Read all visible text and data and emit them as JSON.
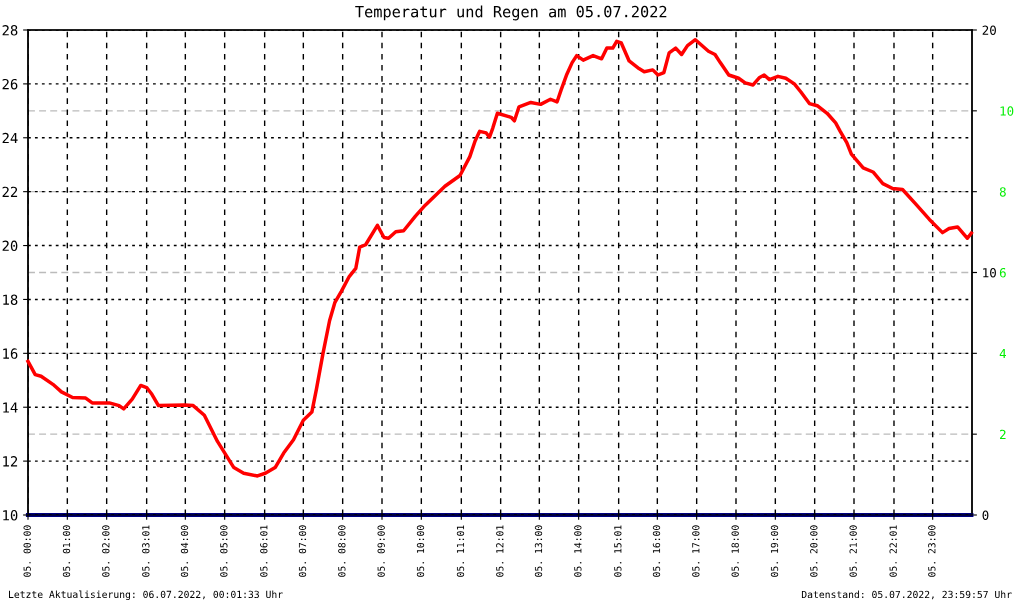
{
  "chart_data": {
    "type": "line",
    "title": "Temperatur und Regen am 05.07.2022",
    "xlim": [
      "2022-07-05T00:00",
      "2022-07-06T00:00"
    ],
    "xticks": [
      {
        "value": "2022-07-05T00:00",
        "label": "05. 00:00"
      },
      {
        "value": "2022-07-05T01:00",
        "label": "05. 01:00"
      },
      {
        "value": "2022-07-05T02:00",
        "label": "05. 02:00"
      },
      {
        "value": "2022-07-05T03:01",
        "label": "05. 03:01"
      },
      {
        "value": "2022-07-05T04:00",
        "label": "05. 04:00"
      },
      {
        "value": "2022-07-05T05:00",
        "label": "05. 05:00"
      },
      {
        "value": "2022-07-05T06:01",
        "label": "05. 06:01"
      },
      {
        "value": "2022-07-05T07:00",
        "label": "05. 07:00"
      },
      {
        "value": "2022-07-05T08:00",
        "label": "05. 08:00"
      },
      {
        "value": "2022-07-05T09:00",
        "label": "05. 09:00"
      },
      {
        "value": "2022-07-05T10:00",
        "label": "05. 10:00"
      },
      {
        "value": "2022-07-05T11:01",
        "label": "05. 11:01"
      },
      {
        "value": "2022-07-05T12:01",
        "label": "05. 12:01"
      },
      {
        "value": "2022-07-05T13:00",
        "label": "05. 13:00"
      },
      {
        "value": "2022-07-05T14:00",
        "label": "05. 14:00"
      },
      {
        "value": "2022-07-05T15:01",
        "label": "05. 15:01"
      },
      {
        "value": "2022-07-05T16:00",
        "label": "05. 16:00"
      },
      {
        "value": "2022-07-05T17:00",
        "label": "05. 17:00"
      },
      {
        "value": "2022-07-05T18:00",
        "label": "05. 18:00"
      },
      {
        "value": "2022-07-05T19:00",
        "label": "05. 19:00"
      },
      {
        "value": "2022-07-05T20:00",
        "label": "05. 20:00"
      },
      {
        "value": "2022-07-05T21:00",
        "label": "05. 21:00"
      },
      {
        "value": "2022-07-05T22:01",
        "label": "05. 22:01"
      },
      {
        "value": "2022-07-05T23:00",
        "label": "05. 23:00"
      }
    ],
    "ylim": [
      10,
      28
    ],
    "yticks": [
      10,
      12,
      14,
      16,
      18,
      20,
      22,
      24,
      26,
      28
    ],
    "y2lim": [
      0,
      20
    ],
    "y2ticks": [
      0,
      10,
      20
    ],
    "y3lim": [
      0,
      12
    ],
    "y3ticks": [
      2,
      4,
      6,
      8,
      10
    ],
    "grid": true,
    "legend": false,
    "marker": "none",
    "line_style": "solid",
    "series": [
      {
        "color": "#ff0000",
        "x": [
          "2022-07-05T00:00",
          "2022-07-05T00:11",
          "2022-07-05T00:20",
          "2022-07-05T00:38",
          "2022-07-05T00:51",
          "2022-07-05T01:08",
          "2022-07-05T01:28",
          "2022-07-05T01:38",
          "2022-07-05T02:04",
          "2022-07-05T02:19",
          "2022-07-05T02:26",
          "2022-07-05T02:39",
          "2022-07-05T02:52",
          "2022-07-05T03:01",
          "2022-07-05T03:09",
          "2022-07-05T03:19",
          "2022-07-05T03:59",
          "2022-07-05T04:12",
          "2022-07-05T04:29",
          "2022-07-05T04:49",
          "2022-07-05T05:14",
          "2022-07-05T05:29",
          "2022-07-05T05:50",
          "2022-07-05T06:02",
          "2022-07-05T06:17",
          "2022-07-05T06:30",
          "2022-07-05T06:45",
          "2022-07-05T07:00",
          "2022-07-05T07:13",
          "2022-07-05T07:20",
          "2022-07-05T07:30",
          "2022-07-05T07:40",
          "2022-07-05T07:48",
          "2022-07-05T07:58",
          "2022-07-05T08:10",
          "2022-07-05T08:20",
          "2022-07-05T08:26",
          "2022-07-05T08:35",
          "2022-07-05T08:53",
          "2022-07-05T09:03",
          "2022-07-05T09:10",
          "2022-07-05T09:21",
          "2022-07-05T09:33",
          "2022-07-05T09:51",
          "2022-07-05T10:06",
          "2022-07-05T10:36",
          "2022-07-05T10:59",
          "2022-07-05T11:14",
          "2022-07-05T11:22",
          "2022-07-05T11:29",
          "2022-07-05T11:39",
          "2022-07-05T11:44",
          "2022-07-05T11:49",
          "2022-07-05T11:56",
          "2022-07-05T12:17",
          "2022-07-05T12:22",
          "2022-07-05T12:29",
          "2022-07-05T12:47",
          "2022-07-05T13:02",
          "2022-07-05T13:17",
          "2022-07-05T13:27",
          "2022-07-05T13:33",
          "2022-07-05T13:42",
          "2022-07-05T13:50",
          "2022-07-05T13:57",
          "2022-07-05T14:07",
          "2022-07-05T14:22",
          "2022-07-05T14:35",
          "2022-07-05T14:43",
          "2022-07-05T14:52",
          "2022-07-05T14:58",
          "2022-07-05T15:05",
          "2022-07-05T15:17",
          "2022-07-05T15:32",
          "2022-07-05T15:40",
          "2022-07-05T15:53",
          "2022-07-05T16:01",
          "2022-07-05T16:10",
          "2022-07-05T16:18",
          "2022-07-05T16:28",
          "2022-07-05T16:37",
          "2022-07-05T16:46",
          "2022-07-05T16:58",
          "2022-07-05T17:05",
          "2022-07-05T17:18",
          "2022-07-05T17:28",
          "2022-07-05T17:36",
          "2022-07-05T17:49",
          "2022-07-05T18:04",
          "2022-07-05T18:14",
          "2022-07-05T18:26",
          "2022-07-05T18:36",
          "2022-07-05T18:43",
          "2022-07-05T18:51",
          "2022-07-05T19:04",
          "2022-07-05T19:16",
          "2022-07-05T19:29",
          "2022-07-05T19:39",
          "2022-07-05T19:52",
          "2022-07-05T20:04",
          "2022-07-05T20:19",
          "2022-07-05T20:32",
          "2022-07-05T20:39",
          "2022-07-05T20:49",
          "2022-07-05T20:56",
          "2022-07-05T21:14",
          "2022-07-05T21:29",
          "2022-07-05T21:44",
          "2022-07-05T21:59",
          "2022-07-05T22:14",
          "2022-07-05T22:35",
          "2022-07-05T22:55",
          "2022-07-05T23:15",
          "2022-07-05T23:25",
          "2022-07-05T23:38",
          "2022-07-05T23:53",
          "2022-07-05T23:59"
        ],
        "values": [
          15.7,
          15.21,
          15.15,
          14.85,
          14.57,
          14.36,
          14.34,
          14.16,
          14.16,
          14.06,
          13.94,
          14.3,
          14.81,
          14.73,
          14.48,
          14.06,
          14.08,
          14.06,
          13.7,
          12.73,
          11.76,
          11.55,
          11.45,
          11.55,
          11.76,
          12.3,
          12.79,
          13.52,
          13.82,
          14.67,
          16.0,
          17.21,
          17.88,
          18.3,
          18.85,
          19.15,
          19.94,
          20.03,
          20.75,
          20.3,
          20.27,
          20.51,
          20.55,
          21.09,
          21.5,
          22.2,
          22.6,
          23.3,
          23.88,
          24.24,
          24.18,
          24.02,
          24.36,
          24.91,
          24.76,
          24.63,
          25.15,
          25.31,
          25.24,
          25.43,
          25.33,
          25.76,
          26.36,
          26.79,
          27.05,
          26.88,
          27.05,
          26.93,
          27.33,
          27.33,
          27.58,
          27.52,
          26.85,
          26.57,
          26.45,
          26.52,
          26.33,
          26.42,
          27.15,
          27.33,
          27.09,
          27.42,
          27.64,
          27.49,
          27.21,
          27.09,
          26.79,
          26.33,
          26.21,
          26.04,
          25.96,
          26.24,
          26.33,
          26.16,
          26.28,
          26.21,
          26.0,
          25.7,
          25.27,
          25.19,
          24.91,
          24.55,
          24.24,
          23.82,
          23.39,
          22.88,
          22.73,
          22.3,
          22.12,
          22.08,
          21.52,
          20.97,
          20.48,
          20.63,
          20.69,
          20.27,
          20.46
        ]
      },
      {
        "color": "#000080",
        "axis": "y2",
        "x": [
          "2022-07-05T00:00",
          "2022-07-05T23:59"
        ],
        "values": [
          0,
          0
        ]
      }
    ],
    "annotations": [
      "Letzte Aktualisierung: 06.07.2022, 00:01:33 Uhr",
      "Datenstand: 05.07.2022, 23:59:57 Uhr"
    ]
  }
}
